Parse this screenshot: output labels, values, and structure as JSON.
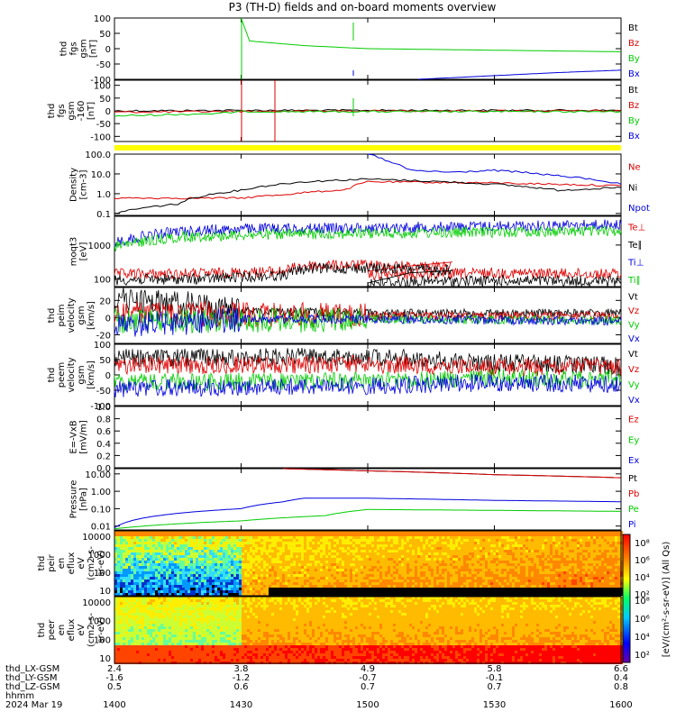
{
  "title": "P3 (TH-D) fields and on-board moments overview",
  "colors": {
    "black": "#000000",
    "red": "#dd0000",
    "green": "#00cc00",
    "blue": "#0000dd",
    "yellow": "#ffff00"
  },
  "chart_data": [
    {
      "type": "line",
      "ylabel_lines": [
        "thd",
        "fgs",
        "gsm",
        "[nT]"
      ],
      "yticks": [
        "100",
        "50",
        "0",
        "-50",
        "-100"
      ],
      "ylim": [
        -100,
        100
      ],
      "series": [
        {
          "name": "Bt",
          "color": "black",
          "values": []
        },
        {
          "name": "Bz",
          "color": "red",
          "values": []
        },
        {
          "name": "By",
          "color": "green",
          "values": [
            [
              1430,
              100
            ],
            [
              1432,
              25
            ],
            [
              1445,
              10
            ],
            [
              1500,
              0
            ],
            [
              1530,
              -5
            ],
            [
              1600,
              -10
            ]
          ]
        },
        {
          "name": "Bx",
          "color": "blue",
          "values": [
            [
              1512,
              -100
            ],
            [
              1530,
              -88
            ],
            [
              1545,
              -78
            ],
            [
              1600,
              -70
            ]
          ]
        }
      ]
    },
    {
      "type": "line",
      "ylabel_lines": [
        "thd",
        "fgs",
        "gsm",
        "-160",
        "[nT]"
      ],
      "yticks": [
        "100",
        "50",
        "0",
        "-50",
        "-100"
      ],
      "ylim": [
        -120,
        120
      ],
      "series": [
        {
          "name": "Bt",
          "color": "black",
          "values": [
            [
              1400,
              0
            ],
            [
              1430,
              2
            ],
            [
              1500,
              2
            ],
            [
              1600,
              2
            ]
          ]
        },
        {
          "name": "Bz",
          "color": "red",
          "values": [
            [
              1400,
              -5
            ],
            [
              1430,
              -2
            ],
            [
              1500,
              0
            ],
            [
              1600,
              0
            ]
          ]
        },
        {
          "name": "By",
          "color": "green",
          "values": [
            [
              1400,
              -20
            ],
            [
              1425,
              -10
            ],
            [
              1430,
              -3
            ],
            [
              1500,
              -3
            ],
            [
              1600,
              -3
            ]
          ]
        },
        {
          "name": "Bx",
          "color": "blue",
          "values": []
        }
      ]
    },
    {
      "type": "line",
      "ylog": true,
      "ylabel_lines": [
        "Density",
        "[cm-3]"
      ],
      "yticks": [
        "100.0",
        "10.0",
        "1.0",
        "0.1"
      ],
      "ylim": [
        0.08,
        100
      ],
      "series": [
        {
          "name": "Ne",
          "color": "red",
          "values": [
            [
              1400,
              0.6
            ],
            [
              1430,
              0.6
            ],
            [
              1440,
              0.9
            ],
            [
              1455,
              1.6
            ],
            [
              1500,
              4.0
            ],
            [
              1530,
              3.5
            ],
            [
              1600,
              2.5
            ]
          ]
        },
        {
          "name": "Ni",
          "color": "black",
          "values": [
            [
              1400,
              0.1
            ],
            [
              1415,
              0.3
            ],
            [
              1430,
              1.5
            ],
            [
              1445,
              4.0
            ],
            [
              1500,
              5.5
            ],
            [
              1530,
              3.0
            ],
            [
              1545,
              1.5
            ],
            [
              1600,
              2.0
            ]
          ]
        },
        {
          "name": "Npot",
          "color": "blue",
          "values": [
            [
              1500,
              100
            ],
            [
              1505,
              40
            ],
            [
              1510,
              15
            ],
            [
              1520,
              12
            ],
            [
              1530,
              15
            ],
            [
              1545,
              8
            ],
            [
              1600,
              3
            ]
          ]
        }
      ]
    },
    {
      "type": "line",
      "ylog": true,
      "ylabel_lines": [
        "moqt3",
        "[eV]"
      ],
      "yticks": [
        "1000",
        "100"
      ],
      "ylim": [
        60,
        7000
      ],
      "series": [
        {
          "name": "Te⊥",
          "color": "red",
          "values": [
            [
              1400,
              140
            ],
            [
              1420,
              145
            ],
            [
              1440,
              170
            ],
            [
              1445,
              250
            ],
            [
              1460,
              260
            ],
            [
              1470,
              240
            ],
            [
              1480,
              230
            ],
            [
              1500,
              130
            ],
            [
              1530,
              150
            ],
            [
              1600,
              140
            ]
          ]
        },
        {
          "name": "Te∥",
          "color": "black",
          "values": [
            [
              1400,
              95
            ],
            [
              1420,
              100
            ],
            [
              1440,
              130
            ],
            [
              1445,
              200
            ],
            [
              1460,
              210
            ],
            [
              1480,
              180
            ],
            [
              1500,
              80
            ],
            [
              1530,
              90
            ],
            [
              1600,
              85
            ]
          ]
        },
        {
          "name": "Ti⊥",
          "color": "blue",
          "values": [
            [
              1400,
              1200
            ],
            [
              1415,
              2500
            ],
            [
              1430,
              3000
            ],
            [
              1500,
              3200
            ],
            [
              1600,
              4000
            ]
          ]
        },
        {
          "name": "Ti∥",
          "color": "green",
          "values": [
            [
              1400,
              900
            ],
            [
              1415,
              1700
            ],
            [
              1430,
              2000
            ],
            [
              1500,
              2200
            ],
            [
              1600,
              2600
            ]
          ]
        }
      ]
    },
    {
      "type": "line",
      "ylabel_lines": [
        "thd",
        "peim",
        "velocity",
        "gsm",
        "[km/s]"
      ],
      "yticks": [
        "20",
        "0",
        "-20"
      ],
      "ylim": [
        -30,
        35
      ],
      "series": [
        {
          "name": "Vt",
          "color": "black",
          "values": [
            [
              1400,
              22
            ],
            [
              1420,
              15
            ],
            [
              1430,
              8
            ],
            [
              1500,
              5
            ],
            [
              1600,
              5
            ]
          ]
        },
        {
          "name": "Vz",
          "color": "red",
          "values": [
            [
              1400,
              5
            ],
            [
              1500,
              2
            ],
            [
              1600,
              2
            ]
          ]
        },
        {
          "name": "Vy",
          "color": "green",
          "values": [
            [
              1400,
              -5
            ],
            [
              1500,
              -2
            ],
            [
              1600,
              -3
            ]
          ]
        },
        {
          "name": "Vx",
          "color": "blue",
          "values": [
            [
              1400,
              -10
            ],
            [
              1430,
              -2
            ],
            [
              1500,
              -2
            ],
            [
              1600,
              -4
            ]
          ]
        }
      ]
    },
    {
      "type": "line",
      "ylabel_lines": [
        "thd",
        "peem",
        "velocity",
        "gsm",
        "[km/s]"
      ],
      "yticks": [
        "100",
        "50",
        "0",
        "-50",
        "-100"
      ],
      "ylim": [
        -100,
        100
      ],
      "series": [
        {
          "name": "Vt",
          "color": "black",
          "values": [
            [
              1400,
              55
            ],
            [
              1500,
              60
            ],
            [
              1530,
              40
            ],
            [
              1600,
              30
            ]
          ]
        },
        {
          "name": "Vz",
          "color": "red",
          "values": [
            [
              1400,
              30
            ],
            [
              1500,
              35
            ],
            [
              1530,
              25
            ],
            [
              1600,
              25
            ]
          ]
        },
        {
          "name": "Vy",
          "color": "green",
          "values": [
            [
              1400,
              -25
            ],
            [
              1500,
              -20
            ],
            [
              1530,
              -10
            ],
            [
              1600,
              -15
            ]
          ]
        },
        {
          "name": "Vx",
          "color": "blue",
          "values": [
            [
              1400,
              -45
            ],
            [
              1500,
              -35
            ],
            [
              1530,
              -25
            ],
            [
              1600,
              -30
            ]
          ]
        }
      ]
    },
    {
      "type": "line",
      "ylabel_lines": [
        "E=-VxB",
        "[mV/m]"
      ],
      "yticks": [
        "1.0",
        "0.8",
        "0.6",
        "0.4",
        "0.2",
        "0.0"
      ],
      "ylim": [
        0,
        1
      ],
      "series": [
        {
          "name": "Ez",
          "color": "red",
          "values": []
        },
        {
          "name": "Ey",
          "color": "green",
          "values": []
        },
        {
          "name": "Ex",
          "color": "blue",
          "values": []
        }
      ]
    },
    {
      "type": "line",
      "ylog": true,
      "ylabel_lines": [
        "Pressure",
        "[nPa]"
      ],
      "yticks": [
        "10.00",
        "1.00",
        "0.10",
        "0.01"
      ],
      "ylim": [
        0.006,
        20
      ],
      "series": [
        {
          "name": "Pt",
          "color": "black",
          "values": [
            [
              1440,
              20
            ],
            [
              1500,
              15
            ],
            [
              1530,
              9
            ],
            [
              1600,
              6
            ]
          ]
        },
        {
          "name": "Pb",
          "color": "red",
          "values": [
            [
              1440,
              20
            ],
            [
              1500,
              15
            ],
            [
              1530,
              9
            ],
            [
              1600,
              6
            ]
          ]
        },
        {
          "name": "Pe",
          "color": "green",
          "values": [
            [
              1400,
              0.007
            ],
            [
              1430,
              0.02
            ],
            [
              1450,
              0.04
            ],
            [
              1500,
              0.09
            ],
            [
              1600,
              0.07
            ]
          ]
        },
        {
          "name": "Pi",
          "color": "blue",
          "values": [
            [
              1400,
              0.008
            ],
            [
              1430,
              0.1
            ],
            [
              1440,
              0.25
            ],
            [
              1445,
              0.4
            ],
            [
              1500,
              0.4
            ],
            [
              1530,
              0.3
            ],
            [
              1600,
              0.25
            ]
          ]
        }
      ]
    },
    {
      "type": "heatmap",
      "ylog": true,
      "ylabel_lines": [
        "thd",
        "peir",
        "en",
        "eflux",
        "eV",
        "(cm2-s-",
        "sr-eV)"
      ],
      "yticks": [
        "10000",
        "1000",
        "100",
        "10"
      ],
      "ylim": [
        5,
        20000
      ]
    },
    {
      "type": "heatmap",
      "ylog": true,
      "ylabel_lines": [
        "thd",
        "peer",
        "en",
        "eflux",
        "eV",
        "(cm2-s-",
        "sr-eV)"
      ],
      "yticks": [
        "10000",
        "1000",
        "100",
        "10"
      ],
      "ylim": [
        5,
        20000
      ]
    }
  ],
  "colorbar": {
    "ticks": [
      "10⁸",
      "10⁶",
      "10⁴",
      "10²"
    ],
    "label": "[eV/(cm²-s-sr-eV)] (All Qs)"
  },
  "xaxis": {
    "hhmm": [
      "1400",
      "1430",
      "1500",
      "1530",
      "1600"
    ],
    "rows": [
      {
        "label": "thd_LX-GSM",
        "values": [
          "2.4",
          "3.8",
          "4.9",
          "5.8",
          "6.6"
        ]
      },
      {
        "label": "thd_LY-GSM",
        "values": [
          "-1.6",
          "-1.2",
          "-0.7",
          "-0.1",
          "0.4"
        ]
      },
      {
        "label": "thd_LZ-GSM",
        "values": [
          "0.5",
          "0.6",
          "0.7",
          "0.7",
          "0.8"
        ]
      },
      {
        "label": "hhmm",
        "values": []
      }
    ],
    "date": "2024 Mar 19"
  }
}
